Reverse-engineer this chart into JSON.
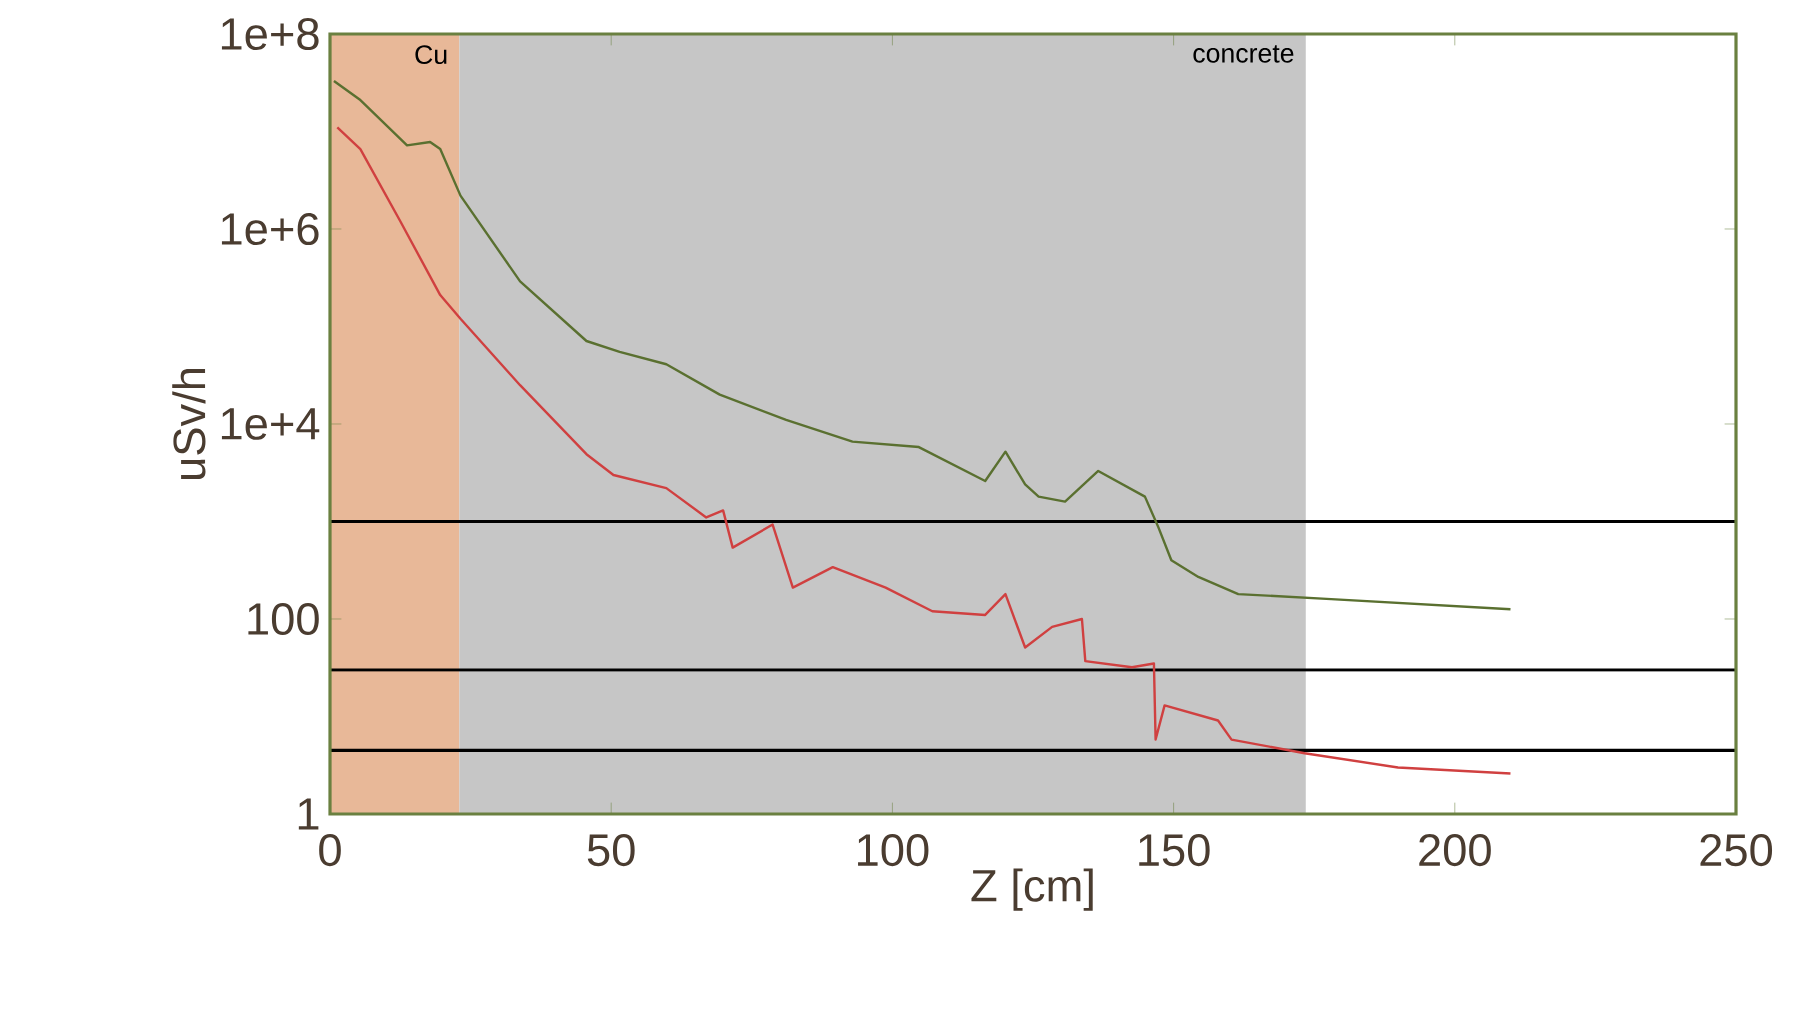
{
  "chart_data": {
    "type": "line",
    "xlabel": "Z [cm]",
    "ylabel": "uSv/h",
    "log": true,
    "xlim": [
      0,
      250
    ],
    "xticks": [
      0,
      50,
      100,
      150,
      200,
      250
    ],
    "ylim": [
      1,
      100000000
    ],
    "yticks": [
      1,
      100,
      {
        "value": 10000,
        "label": "1e+4"
      },
      {
        "value": 1000000,
        "label": "1e+6"
      },
      {
        "value": 100000000,
        "label": "1e+8"
      }
    ],
    "bands": [
      {
        "axis": "x",
        "from": 0,
        "to": 23,
        "label": "Cu",
        "color": "#e8b898"
      },
      {
        "axis": "x",
        "from": 23,
        "to": 173.5,
        "label": "concrete",
        "color": "#c6c6c6"
      }
    ],
    "ref_lines": [
      {
        "axis": "y",
        "value": 1000,
        "color": "#000000"
      },
      {
        "axis": "y",
        "value": 30,
        "color": "#000000"
      },
      {
        "axis": "y",
        "value": 4.5,
        "color": "#000000"
      }
    ],
    "series": [
      {
        "color": "#5a7030",
        "x": [
          0.7,
          5.4,
          13.7,
          17.8,
          19.6,
          23.2,
          33.8,
          45.6,
          51.5,
          59.8,
          69.3,
          81.1,
          92.9,
          104.7,
          116.5,
          120.1,
          123.6,
          126,
          130.7,
          136.6,
          144.9,
          147.3,
          149.6,
          154.4,
          161.5,
          178,
          209.9
        ],
        "values": [
          33000000,
          21000000,
          7200000,
          7800000,
          6600000,
          2200000,
          290000,
          71000,
          55000,
          41000,
          20000,
          11000,
          6600,
          5800,
          2600,
          5200,
          2400,
          1800,
          1600,
          3300,
          1800,
          870,
          400,
          270,
          180,
          160,
          126
        ]
      },
      {
        "color": "#d04040",
        "x": [
          1.3,
          5.4,
          12.5,
          19.6,
          23.2,
          33.8,
          45.6,
          50.4,
          59.8,
          66.9,
          69.9,
          71.6,
          78.7,
          82.3,
          89.4,
          98.8,
          107.1,
          116.5,
          120.1,
          123.6,
          128.4,
          133.7,
          134.3,
          142.6,
          146.5,
          146.8,
          148.4,
          157.9,
          160.3,
          173.3,
          189.9,
          209.9
        ],
        "values": [
          11000000,
          6600000,
          1200000,
          210000,
          120000,
          25000,
          4900,
          3000,
          2200,
          1100,
          1300,
          540,
          930,
          210,
          340,
          210,
          120,
          110,
          180,
          51,
          83,
          100,
          37,
          32,
          35,
          5.8,
          13,
          9.1,
          5.8,
          4.2,
          3.0,
          2.6
        ]
      }
    ]
  }
}
